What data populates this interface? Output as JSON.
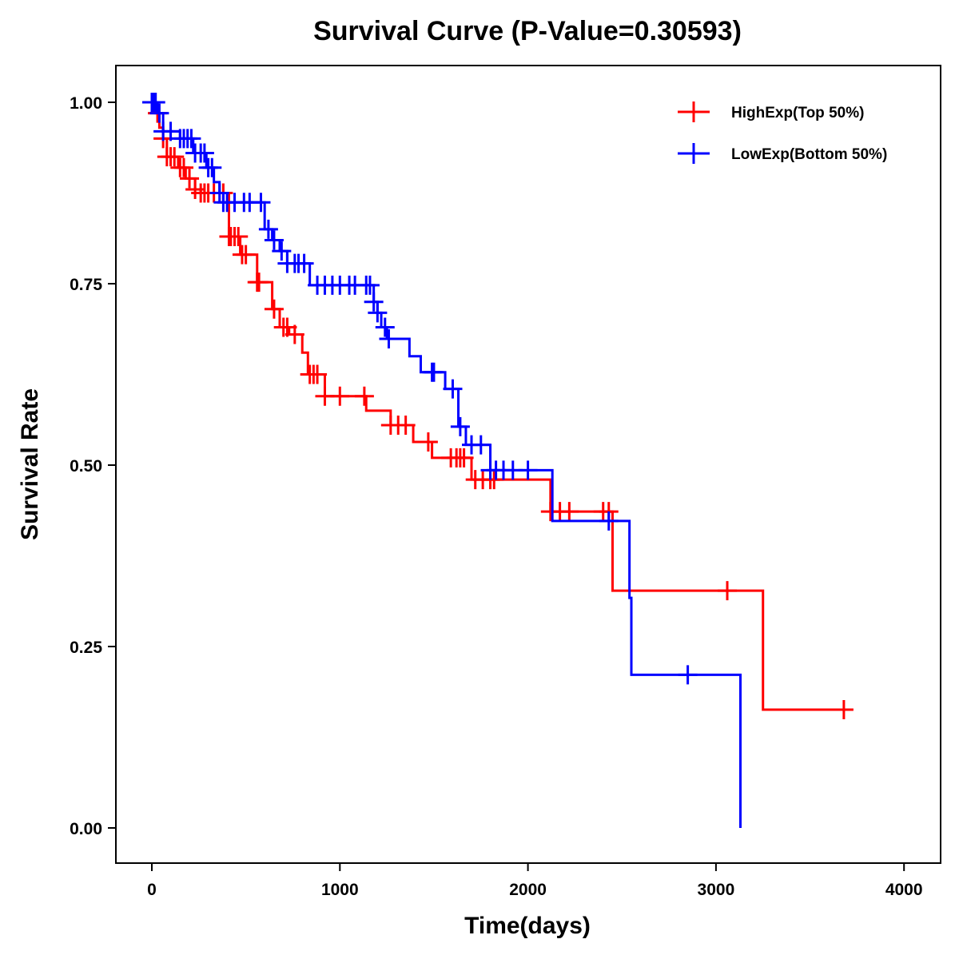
{
  "chart_data": {
    "type": "line",
    "subtype": "kaplan-meier step",
    "title": "Survival Curve (P-Value=0.30593)",
    "xlabel": "Time(days)",
    "ylabel": "Survival Rate",
    "xlim": [
      -200,
      4200
    ],
    "ylim": [
      -0.05,
      1.05
    ],
    "xticks": [
      0,
      1000,
      2000,
      3000,
      4000
    ],
    "xtick_labels": [
      "0",
      "1000",
      "2000",
      "3000",
      "4000"
    ],
    "yticks": [
      0,
      0.25,
      0.5,
      0.75,
      1.0
    ],
    "ytick_labels": [
      "0.00",
      "0.25",
      "0.50",
      "0.75",
      "1.00"
    ],
    "grid": false,
    "legend_position": "top-right",
    "series": [
      {
        "name": "HighExp(Top 50%)",
        "color": "#ff0000",
        "steps": [
          [
            0,
            1.0
          ],
          [
            20,
            0.985
          ],
          [
            40,
            0.965
          ],
          [
            60,
            0.95
          ],
          [
            80,
            0.925
          ],
          [
            140,
            0.91
          ],
          [
            180,
            0.895
          ],
          [
            230,
            0.88
          ],
          [
            260,
            0.875
          ],
          [
            410,
            0.815
          ],
          [
            470,
            0.79
          ],
          [
            560,
            0.752
          ],
          [
            640,
            0.715
          ],
          [
            680,
            0.69
          ],
          [
            730,
            0.68
          ],
          [
            800,
            0.655
          ],
          [
            830,
            0.625
          ],
          [
            920,
            0.595
          ],
          [
            1140,
            0.575
          ],
          [
            1270,
            0.555
          ],
          [
            1390,
            0.532
          ],
          [
            1490,
            0.51
          ],
          [
            1700,
            0.48
          ],
          [
            2120,
            0.436
          ],
          [
            2450,
            0.327
          ],
          [
            3250,
            0.163
          ]
        ],
        "end": 3700,
        "censored": [
          30,
          60,
          80,
          100,
          120,
          150,
          170,
          200,
          230,
          260,
          280,
          300,
          330,
          380,
          410,
          420,
          440,
          460,
          480,
          500,
          560,
          570,
          650,
          700,
          720,
          760,
          840,
          860,
          880,
          920,
          1000,
          1130,
          1270,
          1310,
          1350,
          1470,
          1590,
          1620,
          1640,
          1660,
          1720,
          1760,
          1800,
          1820,
          2120,
          2170,
          2220,
          2400,
          2430,
          3060,
          3680
        ]
      },
      {
        "name": "LowExp(Bottom 50%)",
        "color": "#0000ff",
        "steps": [
          [
            0,
            1.0
          ],
          [
            30,
            0.985
          ],
          [
            60,
            0.96
          ],
          [
            150,
            0.95
          ],
          [
            220,
            0.93
          ],
          [
            290,
            0.91
          ],
          [
            330,
            0.89
          ],
          [
            360,
            0.875
          ],
          [
            380,
            0.862
          ],
          [
            600,
            0.825
          ],
          [
            640,
            0.81
          ],
          [
            680,
            0.795
          ],
          [
            720,
            0.778
          ],
          [
            840,
            0.748
          ],
          [
            1180,
            0.725
          ],
          [
            1200,
            0.71
          ],
          [
            1220,
            0.69
          ],
          [
            1250,
            0.674
          ],
          [
            1370,
            0.65
          ],
          [
            1430,
            0.628
          ],
          [
            1560,
            0.605
          ],
          [
            1630,
            0.553
          ],
          [
            1670,
            0.528
          ],
          [
            1800,
            0.493
          ],
          [
            2130,
            0.423
          ],
          [
            2540,
            0.317
          ],
          [
            2550,
            0.211
          ],
          [
            3130,
            0.0
          ]
        ],
        "end": 3130,
        "censored": [
          0,
          10,
          20,
          40,
          60,
          100,
          150,
          170,
          190,
          210,
          230,
          260,
          280,
          300,
          320,
          360,
          380,
          400,
          440,
          490,
          520,
          580,
          620,
          650,
          690,
          720,
          760,
          780,
          810,
          880,
          920,
          960,
          1000,
          1050,
          1080,
          1140,
          1160,
          1180,
          1200,
          1240,
          1260,
          1490,
          1500,
          1600,
          1640,
          1700,
          1750,
          1800,
          1830,
          1870,
          1920,
          2000,
          2430,
          2850
        ]
      }
    ]
  }
}
